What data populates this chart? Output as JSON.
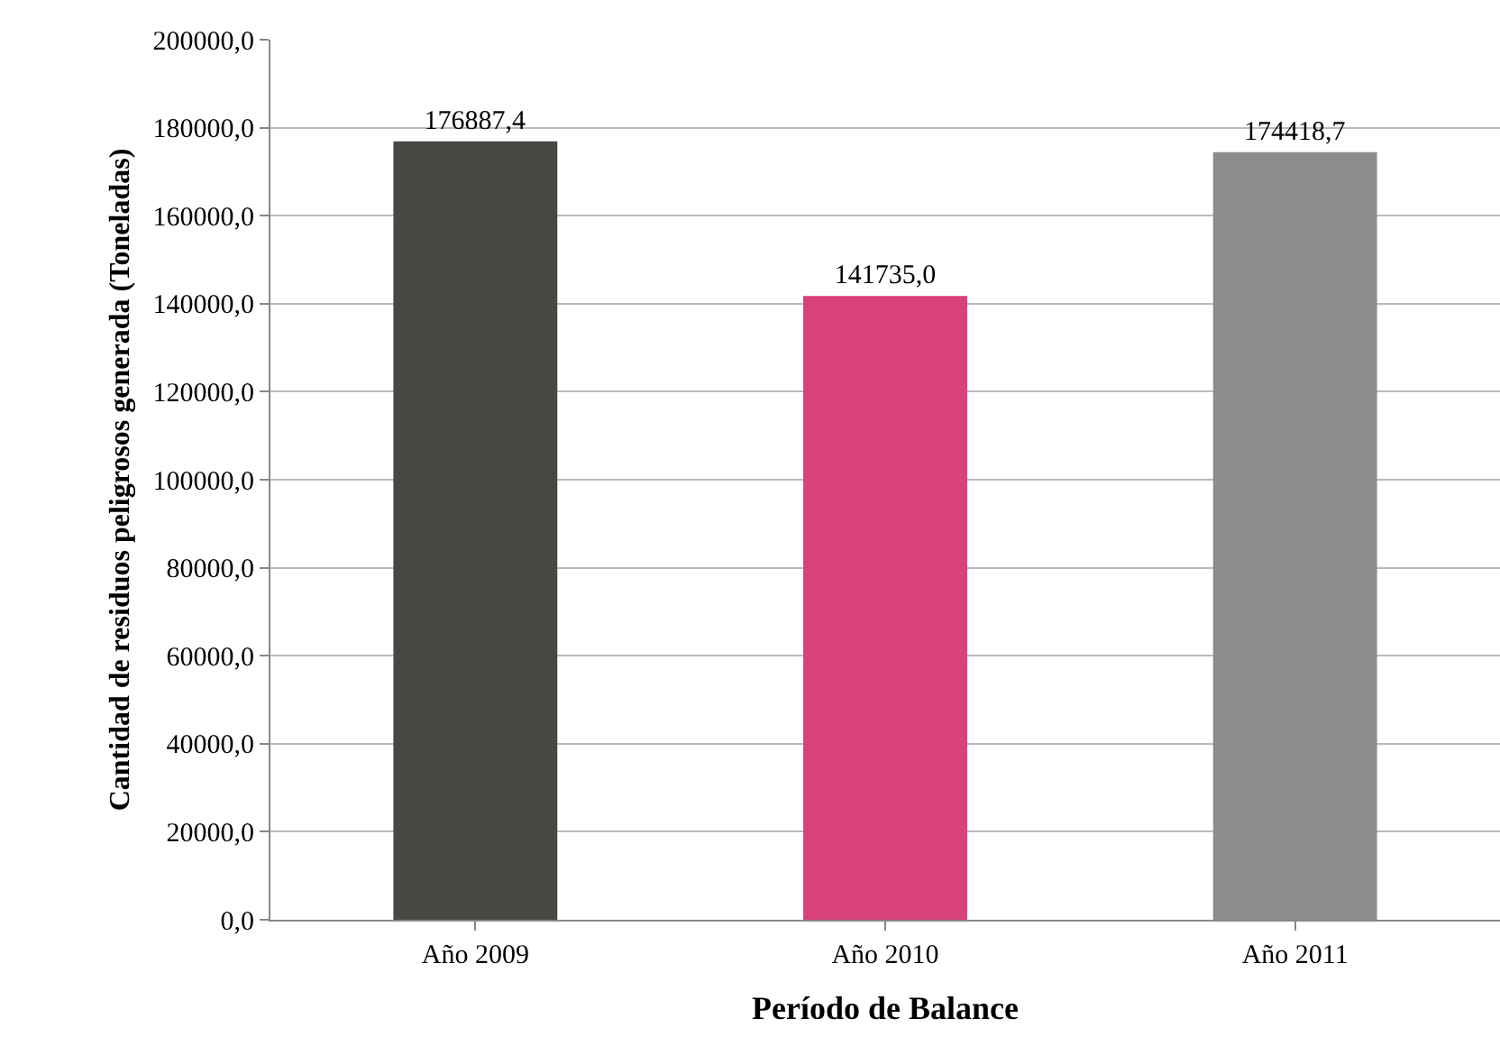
{
  "chart_data": {
    "type": "bar",
    "xlabel": "Período de Balance",
    "ylabel": "Cantidad de residuos peligrosos generada (Toneladas)",
    "categories": [
      "Año 2009",
      "Año 2010",
      "Año 2011"
    ],
    "values": [
      176887.4,
      141735.0,
      174418.7
    ],
    "colors": [
      "#474744",
      "#d9417a",
      "#8c8c8c"
    ],
    "value_labels": [
      "176887,4",
      "141735,0",
      "174418,7"
    ],
    "ylim": [
      0,
      200000
    ],
    "yticks": [
      {
        "value": 0,
        "label": "0,0"
      },
      {
        "value": 20000,
        "label": "20000,0"
      },
      {
        "value": 40000,
        "label": "40000,0"
      },
      {
        "value": 60000,
        "label": "60000,0"
      },
      {
        "value": 80000,
        "label": "80000,0"
      },
      {
        "value": 100000,
        "label": "100000,0"
      },
      {
        "value": 120000,
        "label": "120000,0"
      },
      {
        "value": 140000,
        "label": "140000,0"
      },
      {
        "value": 160000,
        "label": "160000,0"
      },
      {
        "value": 180000,
        "label": "180000,0"
      },
      {
        "value": 200000,
        "label": "200000,0"
      }
    ],
    "grid": "y"
  }
}
